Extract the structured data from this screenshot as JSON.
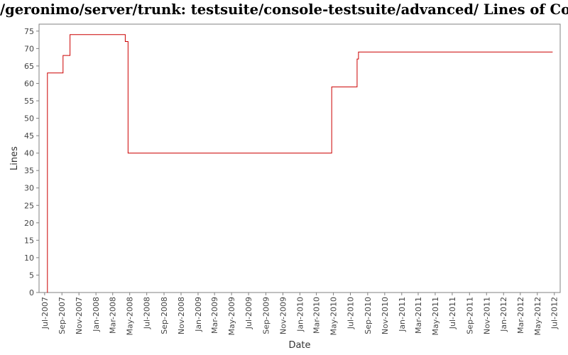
{
  "title": "/geronimo/server/trunk: testsuite/console-testsuite/advanced/ Lines of Code",
  "colors": {
    "series": "#cc0000",
    "axis": "#808080",
    "plot_bg": "#ffffff"
  },
  "chart_data": {
    "type": "line",
    "title": "/geronimo/server/trunk: testsuite/console-testsuite/advanced/ Lines of Code",
    "xlabel": "Date",
    "ylabel": "Lines",
    "ylim": [
      0,
      77
    ],
    "xlim": [
      "2007-06-11",
      "2012-07-22"
    ],
    "grid": false,
    "step": true,
    "yticks": [
      0,
      5,
      10,
      15,
      20,
      25,
      30,
      35,
      40,
      45,
      50,
      55,
      60,
      65,
      70,
      75
    ],
    "xticks": [
      "Jul-2007",
      "Sep-2007",
      "Nov-2007",
      "Jan-2008",
      "Mar-2008",
      "May-2008",
      "Jul-2008",
      "Sep-2008",
      "Nov-2008",
      "Jan-2009",
      "Mar-2009",
      "May-2009",
      "Jul-2009",
      "Sep-2009",
      "Nov-2009",
      "Jan-2010",
      "Mar-2010",
      "May-2010",
      "Jul-2010",
      "Sep-2010",
      "Nov-2010",
      "Jan-2011",
      "Mar-2011",
      "May-2011",
      "Jul-2011",
      "Sep-2011",
      "Nov-2011",
      "Jan-2012",
      "Mar-2012",
      "May-2012",
      "Jul-2012"
    ],
    "series": [
      {
        "x": [
          "2007-07-10",
          "2007-07-11",
          "2007-09-05",
          "2007-09-30",
          "2008-04-15",
          "2008-04-25",
          "2010-04-25",
          "2010-07-25",
          "2010-07-30",
          "2012-06-25"
        ],
        "y": [
          0,
          63,
          68,
          74,
          72,
          40,
          59,
          67,
          69,
          69
        ]
      }
    ]
  }
}
